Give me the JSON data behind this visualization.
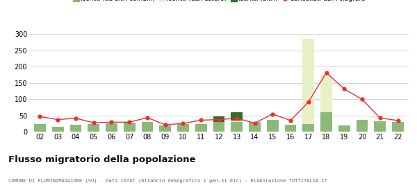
{
  "years": [
    "02",
    "03",
    "04",
    "05",
    "06",
    "07",
    "08",
    "09",
    "10",
    "11",
    "12",
    "13",
    "14",
    "15",
    "16",
    "17",
    "18",
    "19",
    "20",
    "21",
    "22"
  ],
  "iscritti_comuni": [
    25,
    16,
    22,
    25,
    27,
    28,
    30,
    20,
    25,
    25,
    30,
    30,
    30,
    38,
    22,
    25,
    60,
    20,
    38,
    33,
    30
  ],
  "iscritti_estero": [
    0,
    0,
    0,
    0,
    0,
    0,
    0,
    0,
    0,
    0,
    0,
    5,
    0,
    0,
    0,
    262,
    115,
    0,
    0,
    0,
    0
  ],
  "iscritti_altri": [
    0,
    0,
    0,
    0,
    0,
    0,
    0,
    0,
    0,
    0,
    18,
    25,
    0,
    0,
    0,
    0,
    0,
    0,
    0,
    0,
    0
  ],
  "cancellati": [
    47,
    38,
    42,
    28,
    30,
    30,
    44,
    22,
    26,
    36,
    38,
    42,
    27,
    55,
    35,
    92,
    182,
    132,
    100,
    43,
    35
  ],
  "color_comuni": "#8db87a",
  "color_estero": "#e8f0c8",
  "color_altri": "#2d6e2d",
  "color_cancellati": "#e83030",
  "title": "Flusso migratorio della popolazione",
  "subtitle": "COMUNE DI FLUMINIMAGGIORE (SU) - Dati ISTAT (bilancio demografico 1 gen-31 dic) - Elaborazione TUTTITALIA.IT",
  "ylim": [
    0,
    310
  ],
  "yticks": [
    0,
    50,
    100,
    150,
    200,
    250,
    300
  ],
  "background_color": "#ffffff",
  "grid_color": "#cccccc"
}
